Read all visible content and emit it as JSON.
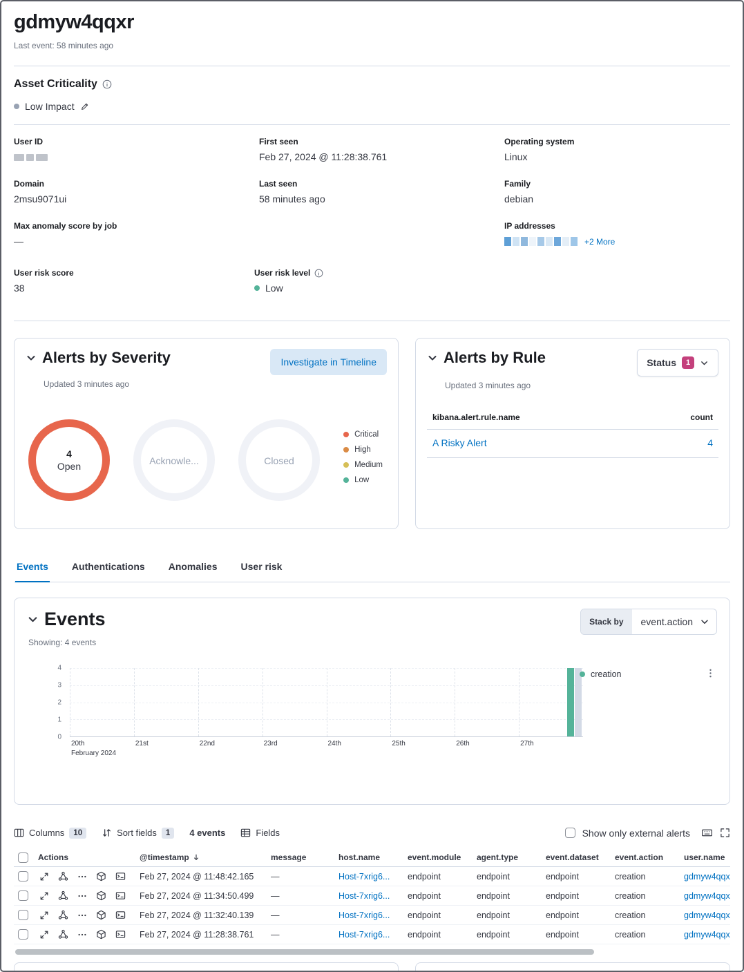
{
  "page": {
    "title": "gdmyw4qqxr",
    "last_event": "Last event: 58 minutes ago"
  },
  "asset_criticality": {
    "heading": "Asset Criticality",
    "value": "Low Impact"
  },
  "overview": {
    "col1": [
      {
        "label": "User ID",
        "value": ""
      },
      {
        "label": "Domain",
        "value": "2msu9071ui"
      },
      {
        "label": "Max anomaly score by job",
        "value": "—"
      }
    ],
    "col2": [
      {
        "label": "First seen",
        "value": "Feb 27, 2024 @ 11:28:38.761"
      },
      {
        "label": "Last seen",
        "value": "58 minutes ago"
      }
    ],
    "col3": [
      {
        "label": "Operating system",
        "value": "Linux"
      },
      {
        "label": "Family",
        "value": "debian"
      },
      {
        "label": "IP addresses",
        "value": "",
        "more_link": "+2 More"
      }
    ]
  },
  "risk": {
    "score_label": "User risk score",
    "score_value": "38",
    "level_label": "User risk level",
    "level_value": "Low",
    "level_color": "#54b399"
  },
  "alerts_by_severity": {
    "title": "Alerts by Severity",
    "updated": "Updated 3 minutes ago",
    "investigate_button": "Investigate in Timeline",
    "donuts": [
      {
        "count": "4",
        "label": "Open",
        "ring_color": "#e7664c"
      },
      {
        "count": "",
        "label": "Acknowle...",
        "ring_color": "#f0f2f7"
      },
      {
        "count": "",
        "label": "Closed",
        "ring_color": "#f0f2f7"
      }
    ],
    "legend": [
      {
        "label": "Critical",
        "color": "#e7664c"
      },
      {
        "label": "High",
        "color": "#da8b45"
      },
      {
        "label": "Medium",
        "color": "#d6bf57"
      },
      {
        "label": "Low",
        "color": "#54b399"
      }
    ]
  },
  "alerts_by_rule": {
    "title": "Alerts by Rule",
    "updated": "Updated 3 minutes ago",
    "status_button": "Status",
    "status_badge": "1",
    "name_header": "kibana.alert.rule.name",
    "count_header": "count",
    "rows": [
      {
        "name": "A Risky Alert",
        "count": "4"
      }
    ]
  },
  "tabs": [
    {
      "label": "Events"
    },
    {
      "label": "Authentications"
    },
    {
      "label": "Anomalies"
    },
    {
      "label": "User risk"
    }
  ],
  "events_panel": {
    "title": "Events",
    "showing": "Showing: 4 events",
    "stack_by_label": "Stack by",
    "stack_by_value": "event.action",
    "legend_label": "creation"
  },
  "chart_data": {
    "type": "bar",
    "title": "Events over time",
    "x_categories": [
      "20th",
      "21st",
      "22nd",
      "23rd",
      "24th",
      "25th",
      "26th",
      "27th"
    ],
    "x_axis_secondary_label": "February 2024",
    "xlabel": "",
    "ylabel": "",
    "ylim": [
      0,
      4
    ],
    "yticks": [
      0,
      1,
      2,
      3,
      4
    ],
    "series": [
      {
        "name": "creation",
        "color": "#54b399",
        "points": [
          {
            "x": "27th",
            "x_index": 7,
            "value": 4
          }
        ]
      }
    ],
    "end_marker": {
      "x_index": 7,
      "value": 4,
      "color": "#d3dae6"
    },
    "grid": true,
    "legend_position": "right",
    "legend_entries": [
      "creation"
    ]
  },
  "grid_toolbar": {
    "columns_label": "Columns",
    "columns_badge": "10",
    "sort_label": "Sort fields",
    "sort_badge": "1",
    "events_count": "4 events",
    "fields_label": "Fields",
    "external_alerts_label": "Show only external alerts"
  },
  "events_table": {
    "headers": {
      "actions": "Actions",
      "timestamp": "@timestamp",
      "message": "message",
      "host": "host.name",
      "module": "event.module",
      "agent": "agent.type",
      "dataset": "event.dataset",
      "action": "event.action",
      "user": "user.name"
    },
    "rows": [
      {
        "timestamp": "Feb 27, 2024 @ 11:48:42.165",
        "message": "—",
        "host": "Host-7xrig6...",
        "module": "endpoint",
        "agent": "endpoint",
        "dataset": "endpoint",
        "action": "creation",
        "user": "gdmyw4qqxr"
      },
      {
        "timestamp": "Feb 27, 2024 @ 11:34:50.499",
        "message": "—",
        "host": "Host-7xrig6...",
        "module": "endpoint",
        "agent": "endpoint",
        "dataset": "endpoint",
        "action": "creation",
        "user": "gdmyw4qqxr"
      },
      {
        "timestamp": "Feb 27, 2024 @ 11:32:40.139",
        "message": "—",
        "host": "Host-7xrig6...",
        "module": "endpoint",
        "agent": "endpoint",
        "dataset": "endpoint",
        "action": "creation",
        "user": "gdmyw4qqxr"
      },
      {
        "timestamp": "Feb 27, 2024 @ 11:28:38.761",
        "message": "—",
        "host": "Host-7xrig6...",
        "module": "endpoint",
        "agent": "endpoint",
        "dataset": "endpoint",
        "action": "creation",
        "user": "gdmyw4qqxr"
      }
    ]
  },
  "colors": {
    "primary": "#0071c2",
    "status_badge": "#c4407c",
    "teal": "#54b399"
  }
}
